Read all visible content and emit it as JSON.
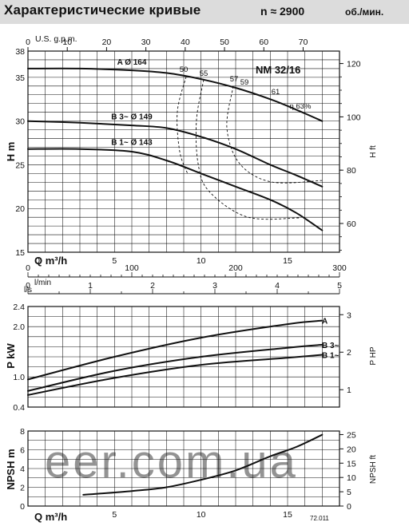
{
  "header": {
    "title": "Характеристические кривые",
    "speed": "n ≈ 2900",
    "unit": "об./мин."
  },
  "model": "NM 32/16",
  "code": "72.011",
  "watermark": "eer.com.ua",
  "chart_data": [
    {
      "type": "line",
      "name": "head",
      "xlabel": "Q m³/h",
      "ylabel": "H m",
      "y2label": "H ft",
      "top_axis_label": "U.S. g.p.m.",
      "xlim": [
        0,
        18
      ],
      "ylim": [
        15,
        38
      ],
      "x_ticks": [
        0,
        5,
        10,
        15
      ],
      "y_ticks": [
        15,
        20,
        25,
        30,
        35,
        38
      ],
      "y2_ticks": [
        60,
        80,
        100,
        120
      ],
      "gpm_ticks": [
        0,
        10,
        20,
        30,
        40,
        50,
        60,
        70
      ],
      "series": [
        {
          "name": "A Ø 164",
          "x": [
            0,
            3,
            6,
            8,
            10,
            12,
            14,
            15.5,
            17
          ],
          "y": [
            36.0,
            36.0,
            35.8,
            35.5,
            34.8,
            33.8,
            32.5,
            31.3,
            30.0
          ]
        },
        {
          "name": "B 3~ Ø 149",
          "x": [
            0,
            3,
            6,
            8,
            10,
            12,
            14,
            15.5,
            17
          ],
          "y": [
            30.0,
            29.8,
            29.5,
            29.2,
            28.2,
            26.8,
            25.0,
            23.8,
            22.5
          ]
        },
        {
          "name": "B 1~ Ø 143",
          "x": [
            0,
            3,
            6,
            8,
            10,
            12,
            14,
            15.5,
            17
          ],
          "y": [
            26.8,
            26.8,
            26.5,
            25.5,
            24.0,
            22.5,
            21.0,
            19.5,
            17.5
          ]
        }
      ],
      "efficiency_labels": [
        "50",
        "55",
        "57",
        "59",
        "61",
        "η 63%"
      ]
    },
    {
      "type": "line",
      "name": "power",
      "flow_scales": {
        "lmin_label": "l/min",
        "lmin_ticks": [
          0,
          100,
          200,
          300
        ],
        "ls_label": "l/s",
        "ls_ticks": [
          0,
          1,
          2,
          3,
          4,
          5
        ]
      },
      "ylabel": "P kW",
      "y2label": "P HP",
      "ylim": [
        0.4,
        2.4
      ],
      "y_ticks": [
        0.4,
        1.0,
        2.0,
        2.4
      ],
      "y2_ticks": [
        1,
        2,
        3
      ],
      "series": [
        {
          "name": "A",
          "x": [
            0,
            5,
            10,
            15,
            17
          ],
          "y": [
            0.95,
            1.4,
            1.78,
            2.05,
            2.12
          ]
        },
        {
          "name": "B 3~",
          "x": [
            0,
            5,
            10,
            15,
            17
          ],
          "y": [
            0.72,
            1.12,
            1.4,
            1.58,
            1.64
          ]
        },
        {
          "name": "B 1~",
          "x": [
            0,
            5,
            10,
            15,
            17
          ],
          "y": [
            0.64,
            0.98,
            1.24,
            1.38,
            1.44
          ]
        }
      ]
    },
    {
      "type": "line",
      "name": "npsh",
      "xlabel": "Q m³/h",
      "ylabel": "NPSH m",
      "y2label": "NPSH ft",
      "xlim": [
        0,
        18
      ],
      "ylim": [
        0,
        8
      ],
      "x_ticks": [
        5,
        10,
        15
      ],
      "y_ticks": [
        0,
        2,
        4,
        6,
        8
      ],
      "y2_ticks": [
        0,
        5,
        10,
        15,
        20,
        25
      ],
      "series": [
        {
          "name": "NPSH",
          "x": [
            3.2,
            6,
            8,
            10,
            12,
            14,
            15.5,
            17
          ],
          "y": [
            1.2,
            1.6,
            2.0,
            2.8,
            3.8,
            5.3,
            6.3,
            7.6
          ]
        }
      ]
    }
  ]
}
